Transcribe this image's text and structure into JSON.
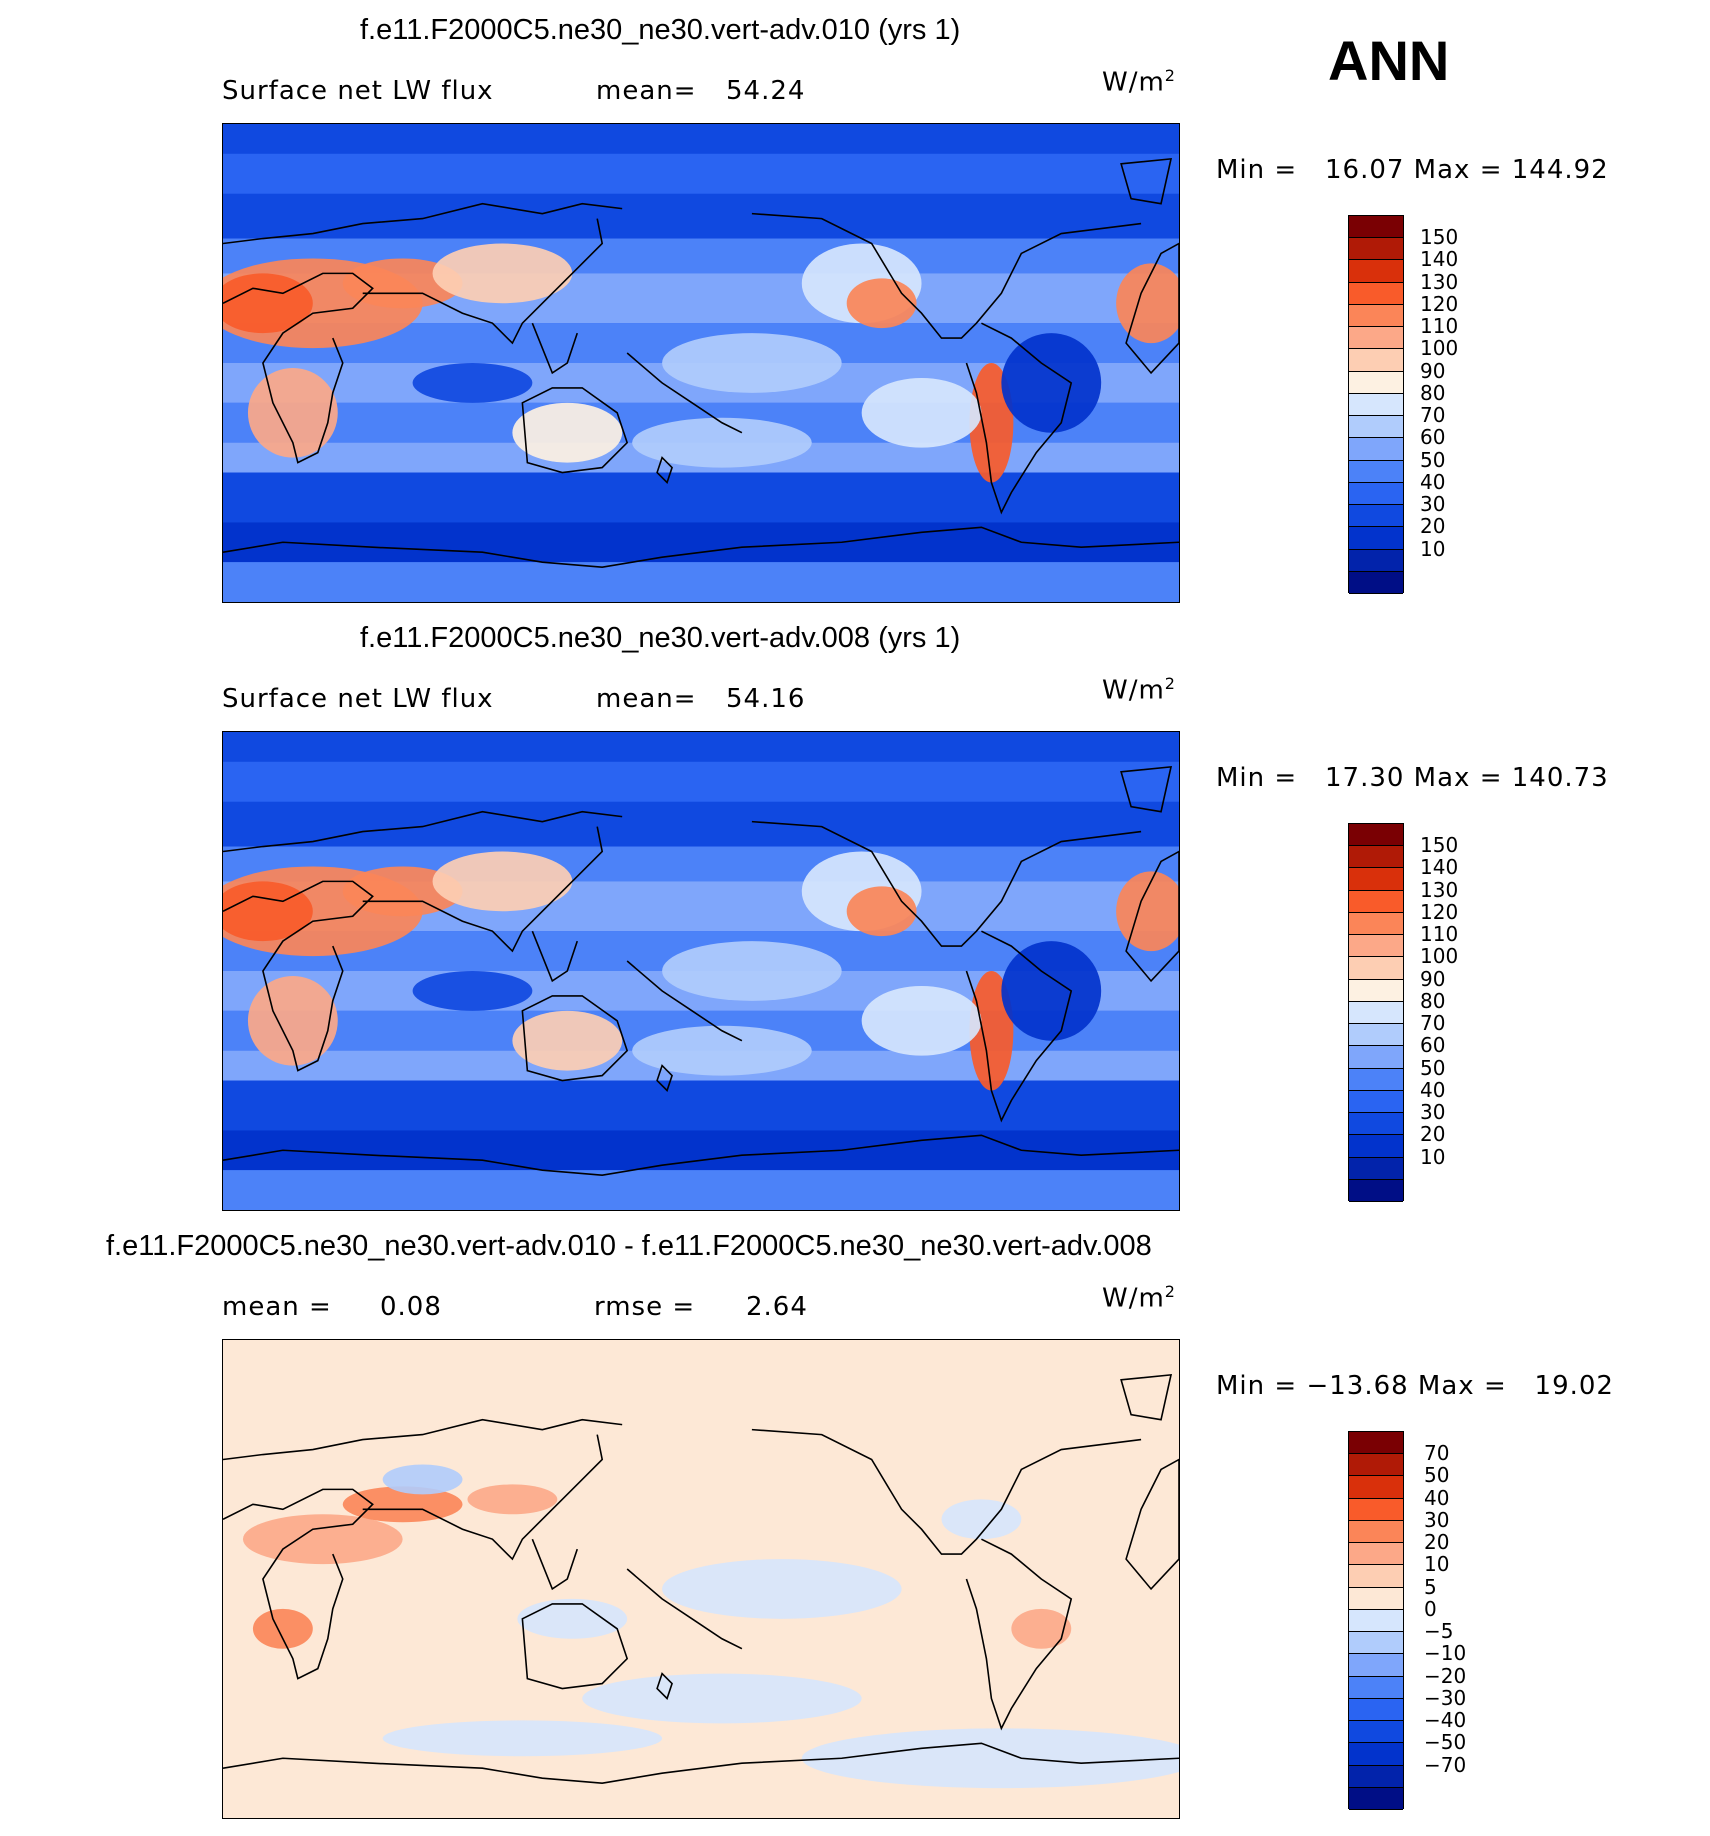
{
  "corner_label": "ANN",
  "colors": {
    "abs_scale": [
      "#000e86",
      "#0223ab",
      "#0233cc",
      "#1049e0",
      "#2a64f2",
      "#4c82f8",
      "#7fa6fb",
      "#b0ccfc",
      "#d6e6fd",
      "#fdf1e2",
      "#fdceb3",
      "#fca888",
      "#fb8558",
      "#f95b2a",
      "#d9300b",
      "#b01a06",
      "#7a0003"
    ],
    "diff_scale": [
      "#000e86",
      "#0223ab",
      "#0233cc",
      "#1049e0",
      "#2a64f2",
      "#4c82f8",
      "#7fa6fb",
      "#b0ccfc",
      "#d6e6fd",
      "#fde8d6",
      "#fdceb3",
      "#fca888",
      "#fb8558",
      "#f95b2a",
      "#d9300b",
      "#b01a06",
      "#7a0003"
    ]
  },
  "panels": [
    {
      "title": "f.e11.F2000C5.ne30_ne30.vert-adv.010 (yrs 1)",
      "left_text": "Surface net LW flux",
      "stat_label": "mean=",
      "stat_value": "54.24",
      "unit": "W/m",
      "unit_sup": "2",
      "minmax": "Min =   16.07 Max = 144.92",
      "legend_ticks": [
        "150",
        "140",
        "130",
        "120",
        "110",
        "100",
        "90",
        "80",
        "70",
        "60",
        "50",
        "40",
        "30",
        "20",
        "10"
      ]
    },
    {
      "title": "f.e11.F2000C5.ne30_ne30.vert-adv.008 (yrs 1)",
      "left_text": "Surface net LW flux",
      "stat_label": "mean=",
      "stat_value": "54.16",
      "unit": "W/m",
      "unit_sup": "2",
      "minmax": "Min =   17.30 Max = 140.73",
      "legend_ticks": [
        "150",
        "140",
        "130",
        "120",
        "110",
        "100",
        "90",
        "80",
        "70",
        "60",
        "50",
        "40",
        "30",
        "20",
        "10"
      ]
    },
    {
      "title": "f.e11.F2000C5.ne30_ne30.vert-adv.010 - f.e11.F2000C5.ne30_ne30.vert-adv.008",
      "left_text": "mean =",
      "left_value": "0.08",
      "stat_label": "rmse =",
      "stat_value": "2.64",
      "unit": "W/m",
      "unit_sup": "2",
      "minmax": "Min = −13.68 Max =   19.02",
      "legend_ticks": [
        "70",
        "50",
        "40",
        "30",
        "20",
        "10",
        "5",
        "0",
        "−5",
        "−10",
        "−20",
        "−30",
        "−40",
        "−50",
        "−70"
      ]
    }
  ],
  "chart_data": [
    {
      "type": "heatmap",
      "title": "f.e11.F2000C5.ne30_ne30.vert-adv.010 (yrs 1)",
      "variable": "Surface net LW flux",
      "units": "W/m2",
      "mean": 54.24,
      "min": 16.07,
      "max": 144.92,
      "contour_levels": [
        10,
        20,
        30,
        40,
        50,
        60,
        70,
        80,
        90,
        100,
        110,
        120,
        130,
        140,
        150
      ]
    },
    {
      "type": "heatmap",
      "title": "f.e11.F2000C5.ne30_ne30.vert-adv.008 (yrs 1)",
      "variable": "Surface net LW flux",
      "units": "W/m2",
      "mean": 54.16,
      "min": 17.3,
      "max": 140.73,
      "contour_levels": [
        10,
        20,
        30,
        40,
        50,
        60,
        70,
        80,
        90,
        100,
        110,
        120,
        130,
        140,
        150
      ]
    },
    {
      "type": "heatmap",
      "title": "f.e11.F2000C5.ne30_ne30.vert-adv.010 - f.e11.F2000C5.ne30_ne30.vert-adv.008",
      "units": "W/m2",
      "mean": 0.08,
      "rmse": 2.64,
      "min": -13.68,
      "max": 19.02,
      "contour_levels": [
        -70,
        -50,
        -40,
        -30,
        -20,
        -10,
        -5,
        0,
        5,
        10,
        20,
        30,
        40,
        50,
        70
      ]
    }
  ]
}
